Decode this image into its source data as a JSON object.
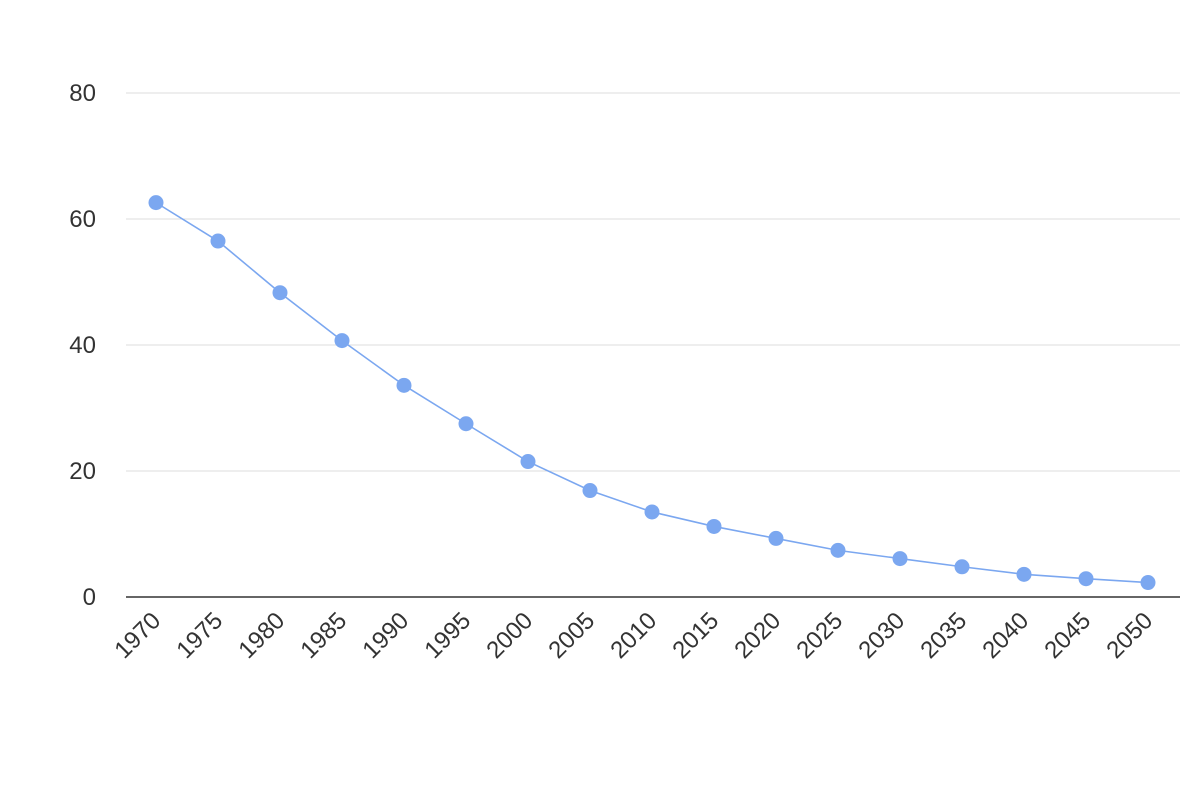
{
  "chart_data": {
    "type": "line",
    "title": "",
    "xlabel": "",
    "ylabel": "",
    "x": [
      "1970",
      "1975",
      "1980",
      "1985",
      "1990",
      "1995",
      "2000",
      "2005",
      "2010",
      "2015",
      "2020",
      "2025",
      "2030",
      "2035",
      "2040",
      "2045",
      "2050"
    ],
    "series": [
      {
        "values": [
          62.6,
          56.5,
          48.3,
          40.7,
          33.6,
          27.5,
          21.5,
          16.9,
          13.5,
          11.2,
          9.3,
          7.4,
          6.1,
          4.8,
          3.6,
          2.9,
          2.3
        ],
        "color": "#7ba7f0"
      }
    ],
    "ylim": [
      0,
      80
    ],
    "yticks": [
      "0",
      "20",
      "40",
      "60",
      "80"
    ],
    "grid": true,
    "legend": "none"
  }
}
